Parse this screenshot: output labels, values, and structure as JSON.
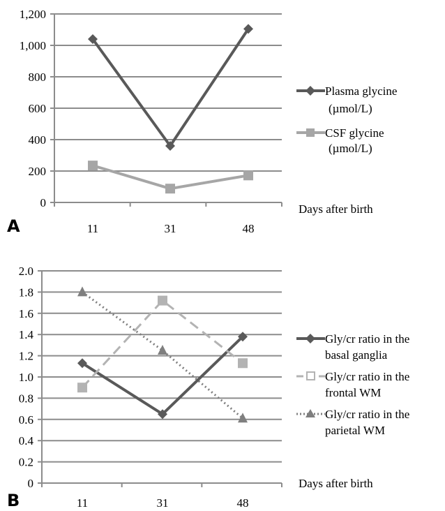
{
  "chart_data": [
    {
      "panel_label": "A",
      "type": "line",
      "categories": [
        "11",
        "31",
        "48"
      ],
      "x_title": "Days after birth",
      "ylim": [
        0,
        1200
      ],
      "y_ticks": [
        "0",
        "200",
        "400",
        "600",
        "800",
        "1,000",
        "1,200"
      ],
      "grid": true,
      "legend_position": "right",
      "series": [
        {
          "name": "Plasma glycine",
          "unit": "(µmol/L)",
          "values": [
            1040,
            360,
            1105
          ],
          "color": "#595959",
          "marker": "diamond",
          "dash": "solid"
        },
        {
          "name": "CSF glycine",
          "unit": "(µmol/L)",
          "values": [
            235,
            88,
            172
          ],
          "color": "#a6a6a6",
          "marker": "square",
          "dash": "solid"
        }
      ]
    },
    {
      "panel_label": "B",
      "type": "line",
      "categories": [
        "11",
        "31",
        "48"
      ],
      "x_title": "Days after birth",
      "ylim": [
        0,
        2.0
      ],
      "y_ticks": [
        "0",
        "0.2",
        "0.4",
        "0.6",
        "0.8",
        "1.0",
        "1.2",
        "1.4",
        "1.6",
        "1.8",
        "2.0"
      ],
      "grid": true,
      "legend_position": "right",
      "series": [
        {
          "name_line1": "Gly/cr ratio in the",
          "name_line2": "basal ganglia",
          "values": [
            1.13,
            0.65,
            1.38
          ],
          "color": "#595959",
          "marker": "diamond",
          "dash": "solid"
        },
        {
          "name_line1": "Gly/cr ratio in the",
          "name_line2": "frontal WM",
          "values": [
            0.9,
            1.72,
            1.13
          ],
          "color": "#b3b3b3",
          "marker": "square",
          "dash": "dashed"
        },
        {
          "name_line1": "Gly/cr ratio in the",
          "name_line2": "parietal WM",
          "values": [
            1.8,
            1.25,
            0.61
          ],
          "color": "#7f7f7f",
          "marker": "triangle",
          "dash": "dotted"
        }
      ]
    }
  ]
}
